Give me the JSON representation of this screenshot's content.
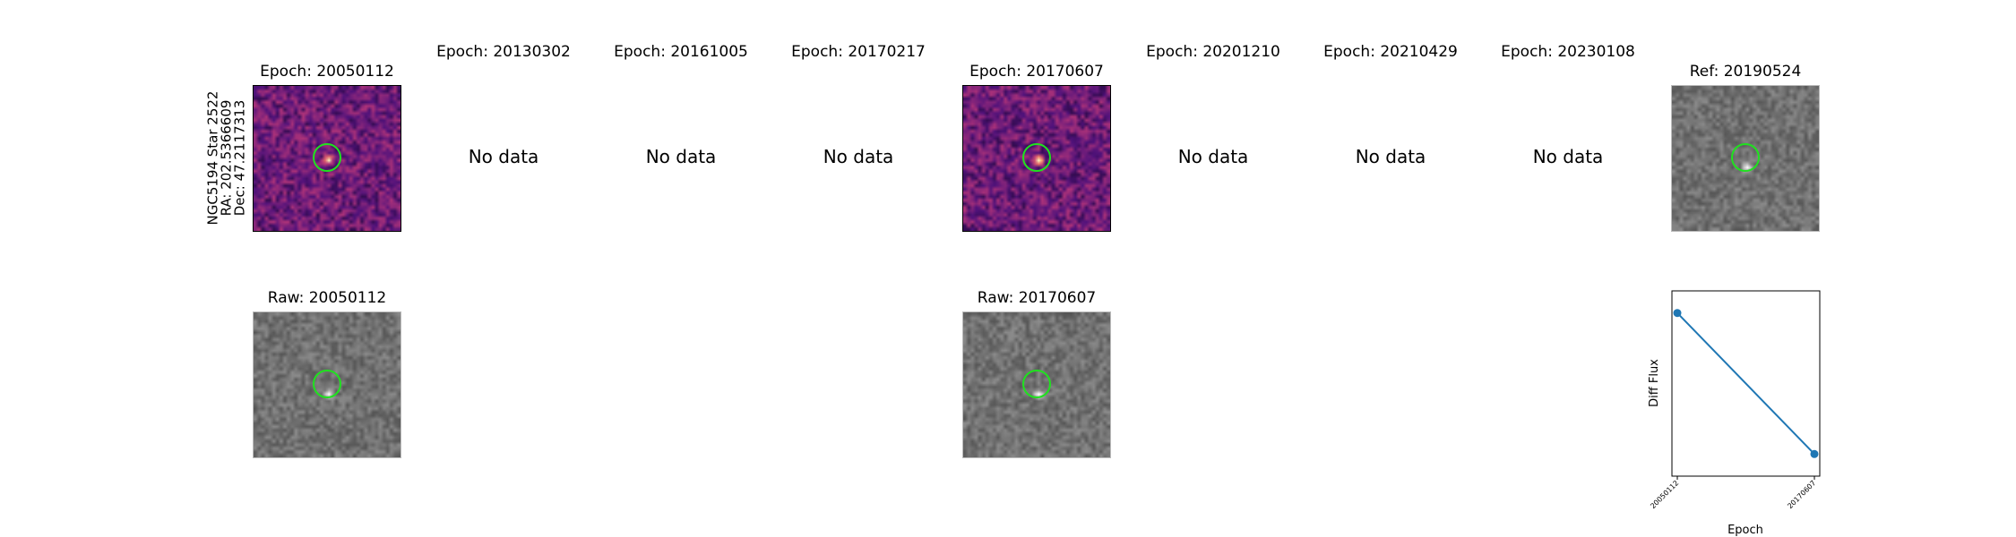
{
  "row_label": {
    "name": "NGC5194 Star 2522",
    "ra": "RA: 202.5366609",
    "dec": "Dec: 47.2117313"
  },
  "epochs": [
    {
      "title": "Epoch: 20050112",
      "has_data": true
    },
    {
      "title": "Epoch: 20130302",
      "has_data": false
    },
    {
      "title": "Epoch: 20161005",
      "has_data": false
    },
    {
      "title": "Epoch: 20170217",
      "has_data": false
    },
    {
      "title": "Epoch: 20170607",
      "has_data": true
    },
    {
      "title": "Epoch: 20201210",
      "has_data": false
    },
    {
      "title": "Epoch: 20210429",
      "has_data": false
    },
    {
      "title": "Epoch: 20230108",
      "has_data": false
    }
  ],
  "no_data_text": "No data",
  "ref": {
    "title": "Ref: 20190524"
  },
  "raws": [
    {
      "title": "Raw: 20050112"
    },
    {
      "title": "Raw: 20170607"
    }
  ],
  "colors": {
    "circle": "#1fe21f",
    "line": "#1f77b4",
    "diff_cmap": "magma",
    "raw_cmap": "gray"
  },
  "chart_data": {
    "type": "line",
    "title": "",
    "xlabel": "Epoch",
    "ylabel": "Diff Flux",
    "categories": [
      "20050112",
      "20170607"
    ],
    "series": [
      {
        "values": [
          0.9,
          0.1
        ]
      }
    ],
    "ylim": [
      0,
      1
    ],
    "grid": false
  }
}
